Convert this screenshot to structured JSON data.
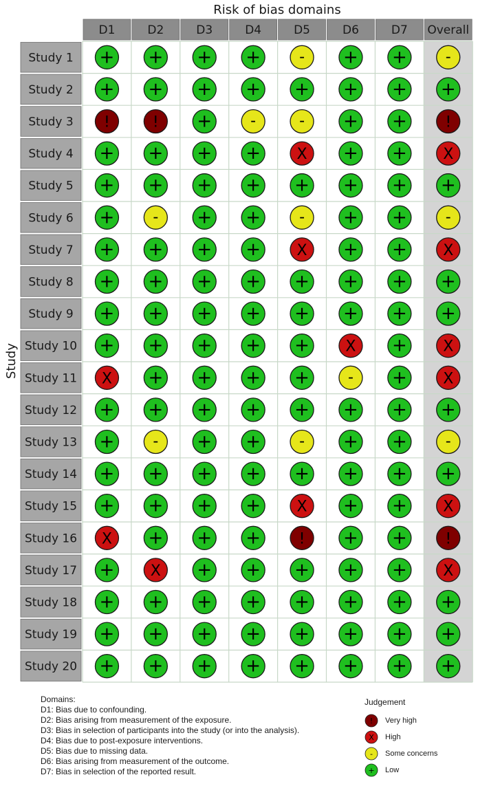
{
  "chart_data": {
    "type": "table",
    "title": "Risk of bias domains",
    "ylabel": "Study",
    "columns": [
      "D1",
      "D2",
      "D3",
      "D4",
      "D5",
      "D6",
      "D7",
      "Overall"
    ],
    "rows": [
      {
        "study": "Study 1",
        "judgements": [
          "low",
          "low",
          "low",
          "low",
          "some",
          "low",
          "low",
          "some"
        ]
      },
      {
        "study": "Study 2",
        "judgements": [
          "low",
          "low",
          "low",
          "low",
          "low",
          "low",
          "low",
          "low"
        ]
      },
      {
        "study": "Study 3",
        "judgements": [
          "veryhigh",
          "veryhigh",
          "low",
          "some",
          "some",
          "low",
          "low",
          "veryhigh"
        ]
      },
      {
        "study": "Study 4",
        "judgements": [
          "low",
          "low",
          "low",
          "low",
          "high",
          "low",
          "low",
          "high"
        ]
      },
      {
        "study": "Study 5",
        "judgements": [
          "low",
          "low",
          "low",
          "low",
          "low",
          "low",
          "low",
          "low"
        ]
      },
      {
        "study": "Study 6",
        "judgements": [
          "low",
          "some",
          "low",
          "low",
          "some",
          "low",
          "low",
          "some"
        ]
      },
      {
        "study": "Study 7",
        "judgements": [
          "low",
          "low",
          "low",
          "low",
          "high",
          "low",
          "low",
          "high"
        ]
      },
      {
        "study": "Study 8",
        "judgements": [
          "low",
          "low",
          "low",
          "low",
          "low",
          "low",
          "low",
          "low"
        ]
      },
      {
        "study": "Study 9",
        "judgements": [
          "low",
          "low",
          "low",
          "low",
          "low",
          "low",
          "low",
          "low"
        ]
      },
      {
        "study": "Study 10",
        "judgements": [
          "low",
          "low",
          "low",
          "low",
          "low",
          "high",
          "low",
          "high"
        ]
      },
      {
        "study": "Study 11",
        "judgements": [
          "high",
          "low",
          "low",
          "low",
          "low",
          "some",
          "low",
          "high"
        ]
      },
      {
        "study": "Study 12",
        "judgements": [
          "low",
          "low",
          "low",
          "low",
          "low",
          "low",
          "low",
          "low"
        ]
      },
      {
        "study": "Study 13",
        "judgements": [
          "low",
          "some",
          "low",
          "low",
          "some",
          "low",
          "low",
          "some"
        ]
      },
      {
        "study": "Study 14",
        "judgements": [
          "low",
          "low",
          "low",
          "low",
          "low",
          "low",
          "low",
          "low"
        ]
      },
      {
        "study": "Study 15",
        "judgements": [
          "low",
          "low",
          "low",
          "low",
          "high",
          "low",
          "low",
          "high"
        ]
      },
      {
        "study": "Study 16",
        "judgements": [
          "high",
          "low",
          "low",
          "low",
          "veryhigh",
          "low",
          "low",
          "veryhigh"
        ]
      },
      {
        "study": "Study 17",
        "judgements": [
          "low",
          "high",
          "low",
          "low",
          "low",
          "low",
          "low",
          "high"
        ]
      },
      {
        "study": "Study 18",
        "judgements": [
          "low",
          "low",
          "low",
          "low",
          "low",
          "low",
          "low",
          "low"
        ]
      },
      {
        "study": "Study 19",
        "judgements": [
          "low",
          "low",
          "low",
          "low",
          "low",
          "low",
          "low",
          "low"
        ]
      },
      {
        "study": "Study 20",
        "judgements": [
          "low",
          "low",
          "low",
          "low",
          "low",
          "low",
          "low",
          "low"
        ]
      }
    ],
    "judgement_styles": {
      "veryhigh": {
        "color": "#7f0000",
        "symbol": "!"
      },
      "high": {
        "color": "#cc1111",
        "symbol": "X"
      },
      "some": {
        "color": "#e6e61a",
        "symbol": "-"
      },
      "low": {
        "color": "#1fbf1f",
        "symbol": "+"
      }
    },
    "header_color": "#8c8c8c",
    "study_label_color": "#a6a6a6",
    "overall_bg_color": "#d4d4d4"
  },
  "domains": {
    "heading": "Domains:",
    "items": [
      "D1: Bias due to confounding.",
      "D2: Bias arising from measurement of the exposure.",
      "D3: Bias in selection of participants into the study (or into the analysis).",
      "D4: Bias due to post-exposure interventions.",
      "D5: Bias due to missing data.",
      "D6: Bias arising from measurement of the outcome.",
      "D7: Bias in selection of the reported result."
    ]
  },
  "legend": {
    "title": "Judgement",
    "items": [
      {
        "key": "veryhigh",
        "label": "Very high"
      },
      {
        "key": "high",
        "label": "High"
      },
      {
        "key": "some",
        "label": "Some concerns"
      },
      {
        "key": "low",
        "label": "Low"
      }
    ]
  }
}
